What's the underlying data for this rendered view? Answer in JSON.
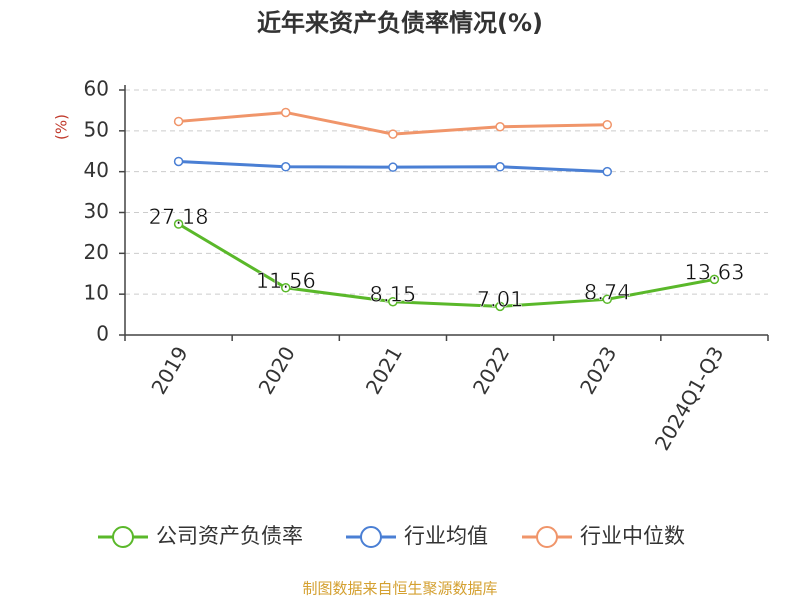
{
  "chart_data": {
    "type": "line",
    "title": "近年来资产负债率情况(%)",
    "y_label": "(%)",
    "categories": [
      "2019",
      "2020",
      "2021",
      "2022",
      "2023",
      "2024Q1-Q3"
    ],
    "series": [
      {
        "name": "公司资产负债率",
        "color": "#5ab82a",
        "values": [
          27.18,
          11.56,
          8.15,
          7.01,
          8.74,
          13.63
        ],
        "data_labels": true
      },
      {
        "name": "行业均值",
        "color": "#4a7fd4",
        "values": [
          42.5,
          41.2,
          41.1,
          41.2,
          40.0,
          null
        ],
        "data_labels": false
      },
      {
        "name": "行业中位数",
        "color": "#f0956a",
        "values": [
          52.3,
          54.5,
          49.2,
          51.0,
          51.5,
          null
        ],
        "data_labels": false
      }
    ],
    "ylim": [
      0,
      60
    ],
    "yticks": [
      0,
      10,
      20,
      30,
      40,
      50,
      60
    ],
    "grid": true,
    "source": "制图数据来自恒生聚源数据库"
  }
}
